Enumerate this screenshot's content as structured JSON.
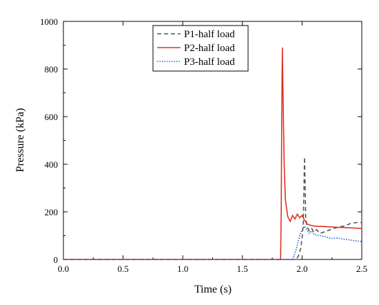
{
  "chart_data": {
    "type": "line",
    "title": "",
    "xlabel": "Time (s)",
    "ylabel": "Pressure (kPa)",
    "xlim": [
      0,
      2.5
    ],
    "ylim": [
      0,
      1000
    ],
    "xticks": [
      0.0,
      0.5,
      1.0,
      1.5,
      2.0,
      2.5
    ],
    "xtick_labels": [
      "0.0",
      "0.5",
      "1.0",
      "1.5",
      "2.0",
      "2.5"
    ],
    "yticks": [
      0,
      200,
      400,
      600,
      800,
      1000
    ],
    "ytick_labels": [
      "0",
      "200",
      "400",
      "600",
      "800",
      "1000"
    ],
    "grid": false,
    "legend_position": "top-right",
    "series": [
      {
        "name": "P1-half load",
        "color": "#555555",
        "style": "dashed",
        "points": [
          [
            0.0,
            0
          ],
          [
            1.9,
            0
          ],
          [
            1.95,
            0
          ],
          [
            1.97,
            15
          ],
          [
            1.99,
            50
          ],
          [
            2.0,
            90
          ],
          [
            2.01,
            150
          ],
          [
            2.015,
            280
          ],
          [
            2.02,
            430
          ],
          [
            2.025,
            330
          ],
          [
            2.03,
            180
          ],
          [
            2.04,
            140
          ],
          [
            2.06,
            120
          ],
          [
            2.08,
            130
          ],
          [
            2.1,
            115
          ],
          [
            2.12,
            125
          ],
          [
            2.15,
            110
          ],
          [
            2.2,
            118
          ],
          [
            2.25,
            128
          ],
          [
            2.3,
            135
          ],
          [
            2.35,
            140
          ],
          [
            2.4,
            150
          ],
          [
            2.45,
            155
          ],
          [
            2.5,
            155
          ]
        ]
      },
      {
        "name": "P2-half load",
        "color": "#e03020",
        "style": "solid",
        "points": [
          [
            0.0,
            0
          ],
          [
            1.82,
            0
          ],
          [
            1.825,
            200
          ],
          [
            1.83,
            650
          ],
          [
            1.835,
            890
          ],
          [
            1.84,
            700
          ],
          [
            1.85,
            400
          ],
          [
            1.86,
            250
          ],
          [
            1.88,
            180
          ],
          [
            1.9,
            160
          ],
          [
            1.92,
            185
          ],
          [
            1.94,
            170
          ],
          [
            1.96,
            190
          ],
          [
            1.98,
            175
          ],
          [
            2.0,
            185
          ],
          [
            2.02,
            165
          ],
          [
            2.04,
            150
          ],
          [
            2.06,
            145
          ],
          [
            2.1,
            140
          ],
          [
            2.2,
            138
          ],
          [
            2.3,
            135
          ],
          [
            2.4,
            133
          ],
          [
            2.5,
            130
          ]
        ]
      },
      {
        "name": "P3-half load",
        "color": "#1a5bd4",
        "style": "dotted",
        "points": [
          [
            0.0,
            0
          ],
          [
            1.92,
            0
          ],
          [
            1.95,
            40
          ],
          [
            1.98,
            100
          ],
          [
            2.0,
            125
          ],
          [
            2.02,
            140
          ],
          [
            2.04,
            125
          ],
          [
            2.06,
            110
          ],
          [
            2.08,
            120
          ],
          [
            2.1,
            105
          ],
          [
            2.15,
            100
          ],
          [
            2.2,
            95
          ],
          [
            2.25,
            88
          ],
          [
            2.3,
            90
          ],
          [
            2.35,
            85
          ],
          [
            2.4,
            82
          ],
          [
            2.45,
            78
          ],
          [
            2.5,
            75
          ]
        ]
      }
    ]
  }
}
